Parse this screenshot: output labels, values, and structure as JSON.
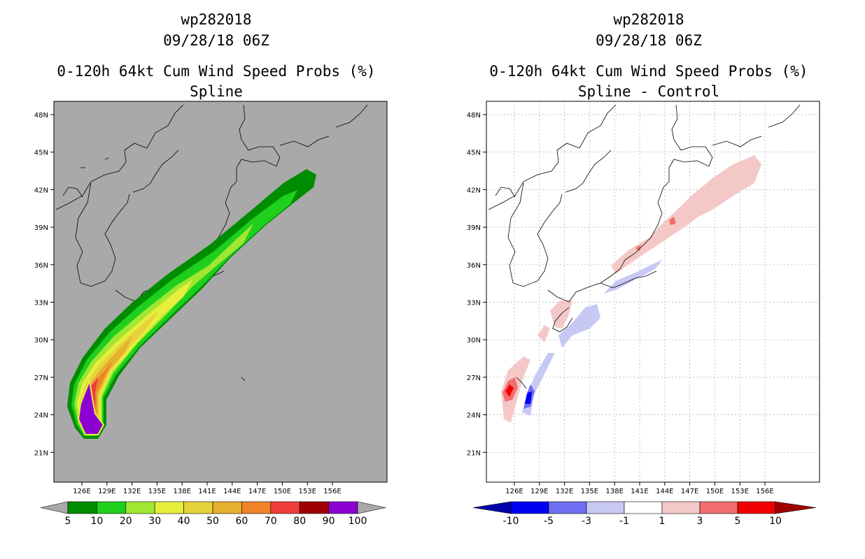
{
  "left": {
    "storm_id": "wp282018",
    "datetime": "09/28/18 06Z",
    "product": "0-120h 64kt Cum Wind Speed Probs (%)",
    "subtitle": "Spline",
    "background_color": "#a9a9a9",
    "colorbar": {
      "labels": [
        "5",
        "10",
        "20",
        "30",
        "40",
        "50",
        "60",
        "70",
        "80",
        "90",
        "100"
      ],
      "colors": [
        "#008c00",
        "#1ecf1e",
        "#a0e632",
        "#e6f03c",
        "#e6d23c",
        "#e6af2d",
        "#f08228",
        "#f03c3c",
        "#a00000",
        "#8c00d2"
      ]
    }
  },
  "right": {
    "storm_id": "wp282018",
    "datetime": "09/28/18 06Z",
    "product": "0-120h 64kt Cum Wind Speed Probs (%)",
    "subtitle": "Spline - Control",
    "background_color": "#ffffff",
    "colorbar": {
      "labels": [
        "-10",
        "-5",
        "-3",
        "-1",
        "1",
        "3",
        "5",
        "10"
      ],
      "colors": [
        "#0000aa",
        "#0000f0",
        "#6e6ef0",
        "#c8c8f5",
        "#ffffff",
        "#f5c8c8",
        "#f06e6e",
        "#f00000",
        "#a00000"
      ]
    }
  },
  "axes": {
    "lat_labels": [
      "48N",
      "45N",
      "42N",
      "39N",
      "36N",
      "33N",
      "30N",
      "27N",
      "24N",
      "21N"
    ],
    "lon_labels": [
      "126E",
      "129E",
      "132E",
      "135E",
      "138E",
      "141E",
      "144E",
      "147E",
      "150E",
      "153E",
      "156E"
    ]
  }
}
